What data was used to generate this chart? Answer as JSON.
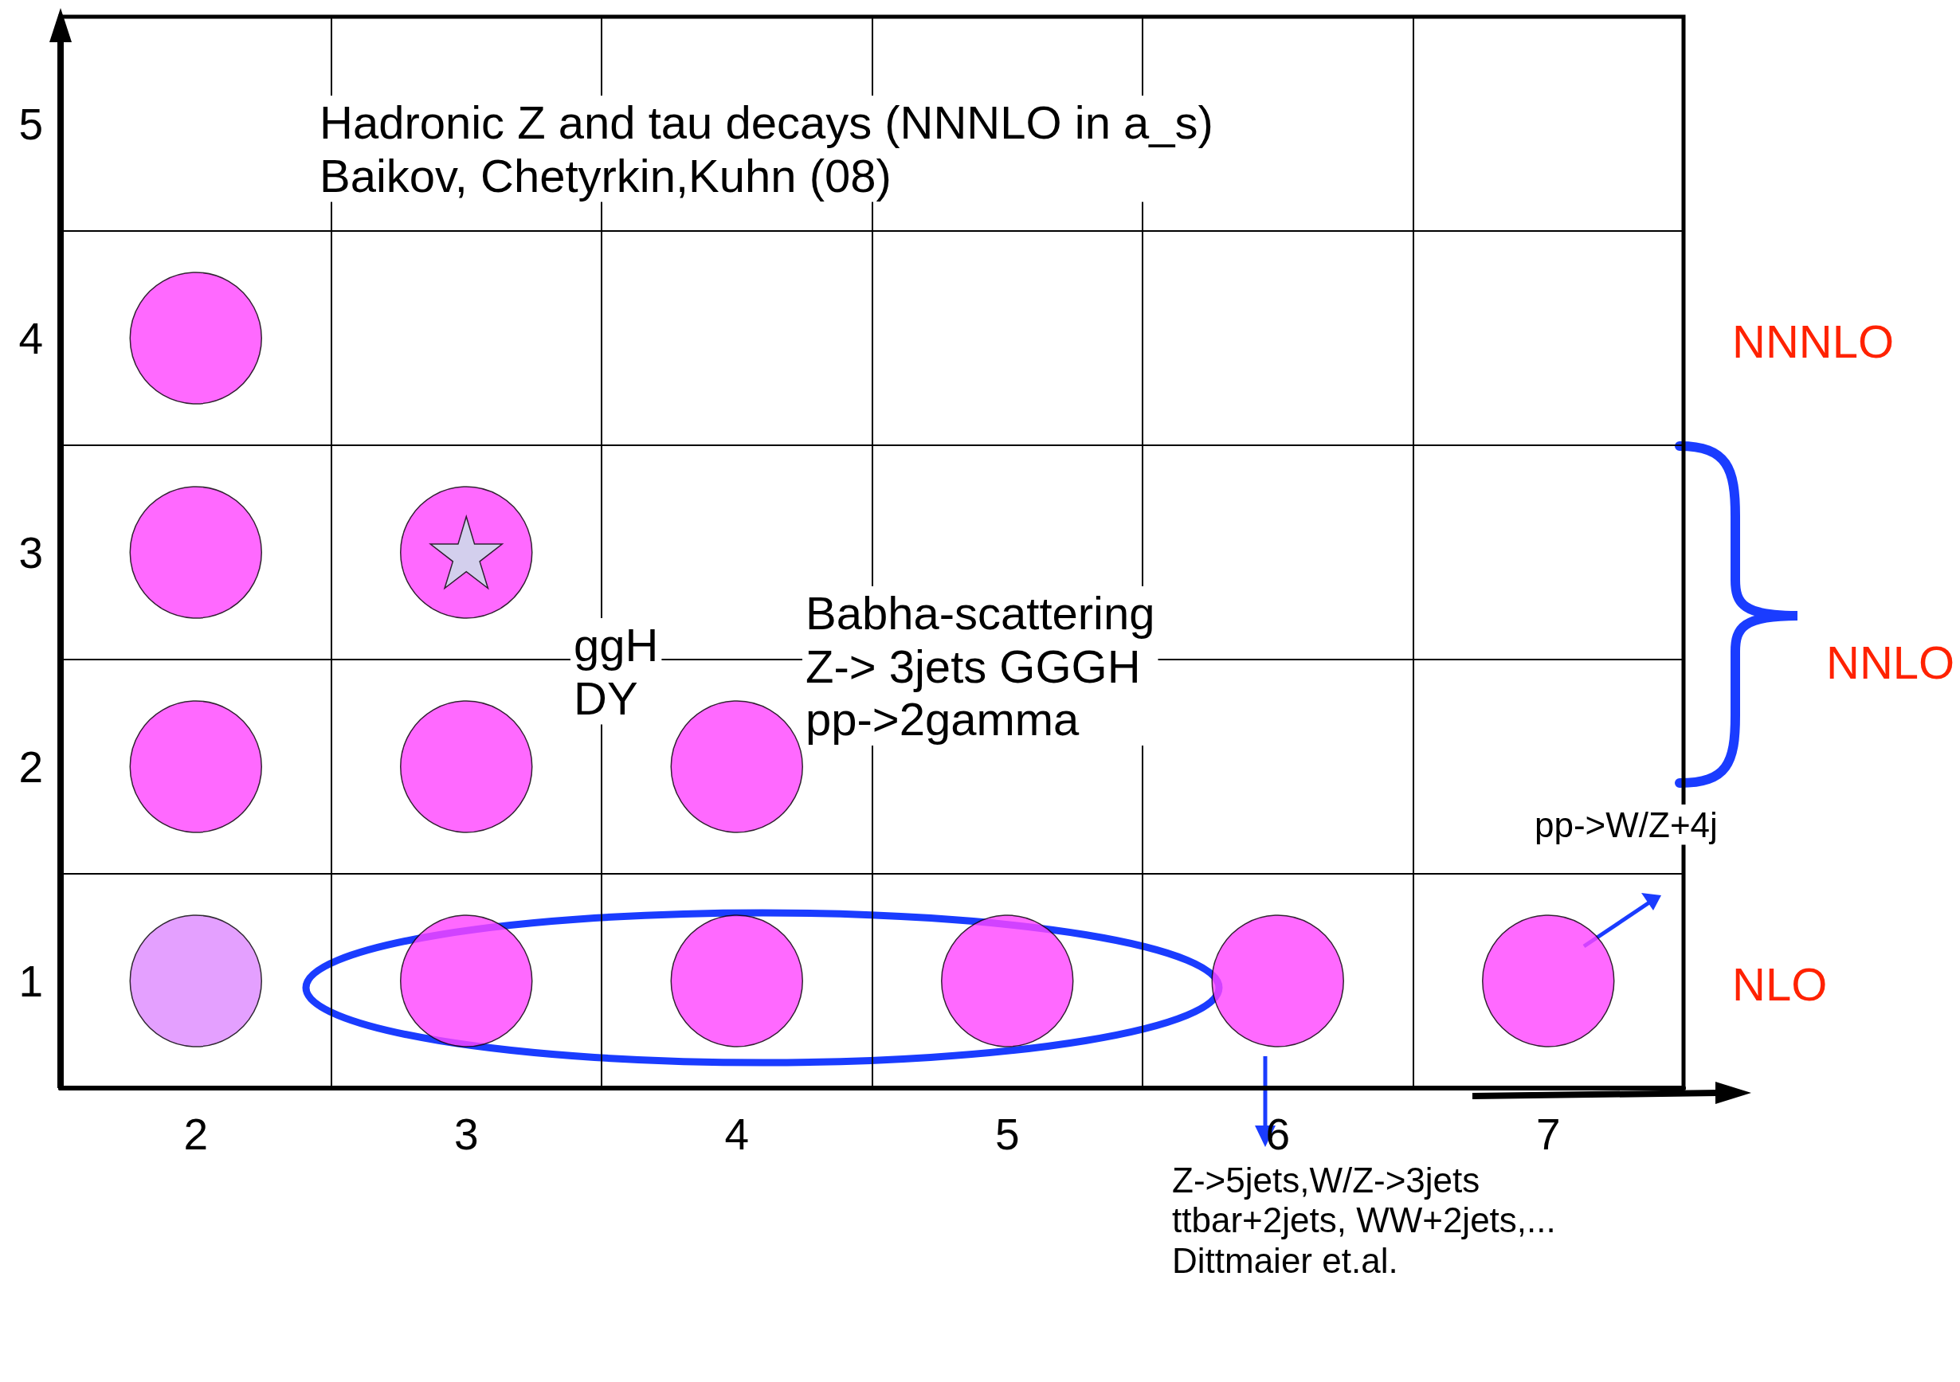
{
  "chart_data": {
    "type": "scatter",
    "categories": [
      "2",
      "3",
      "4",
      "5",
      "6",
      "7"
    ],
    "ylim": [
      0.5,
      5.5
    ],
    "yticks": [
      1,
      2,
      3,
      4,
      5
    ],
    "grid": true,
    "marker": "circle",
    "series": [
      {
        "x": [
          "2",
          "2",
          "2",
          "2",
          "3",
          "3",
          "3",
          "4",
          "4",
          "5",
          "6",
          "7"
        ],
        "values": [
          1,
          2,
          3,
          4,
          1,
          2,
          3,
          1,
          2,
          1,
          1,
          1
        ],
        "colors": [
          "#dd88ff",
          "#ff44ff",
          "#ff44ff",
          "#ff44ff",
          "#ff44ff",
          "#ff44ff",
          "#ff44ff",
          "#ff44ff",
          "#ff44ff",
          "#ff44ff",
          "#ff44ff",
          "#ff44ff"
        ]
      },
      {
        "x": [
          "3"
        ],
        "values": [
          3
        ],
        "color": "#c8e8e8",
        "marker": "star"
      }
    ],
    "annotations": [
      "Hadronic Z and tau decays (NNNLO in a_s)\nBaikov, Chetyrkin,Kuhn (08)",
      "ggH\nDY",
      "Babha-scattering\nZ-> 3jets GGGH\npp->2gamma",
      "pp->W/Z+4j",
      "Z->5jets,W/Z->3jets\nttbar+2jets, WW+2jets,...\nDittmaier et.al.",
      "NNNLO",
      "NNLO",
      "NLO"
    ]
  }
}
